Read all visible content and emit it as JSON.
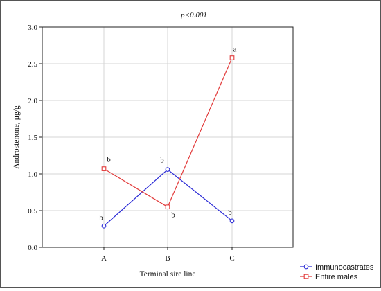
{
  "chart_data": {
    "type": "line",
    "title": "p<0.001",
    "xlabel": "Terminal sire line",
    "ylabel": "Androstenone, µg/g",
    "categories": [
      "A",
      "B",
      "C"
    ],
    "ylim": [
      0.0,
      3.0
    ],
    "yticks": [
      "0.0",
      "0.5",
      "1.0",
      "1.5",
      "2.0",
      "2.5",
      "3.0"
    ],
    "grid": true,
    "legend_position": "bottom-right, outside plot",
    "series": [
      {
        "name": "Immunocastrates",
        "color": "#2b2bd6",
        "marker": "circle",
        "values": [
          0.29,
          1.06,
          0.36
        ],
        "letters": [
          "b",
          "b",
          "b"
        ]
      },
      {
        "name": "Entire males",
        "color": "#e23a3a",
        "marker": "square",
        "values": [
          1.07,
          0.55,
          2.58
        ],
        "letters": [
          "b",
          "b",
          "a"
        ]
      }
    ]
  }
}
